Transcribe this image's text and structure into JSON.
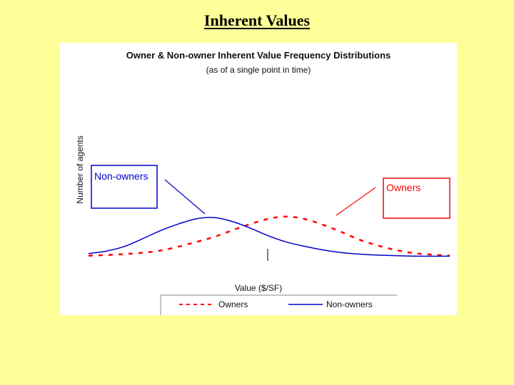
{
  "slide": {
    "title": "Inherent Values"
  },
  "chart_data": {
    "type": "line",
    "title": "Owner & Non-owner Inherent Value Frequency Distributions",
    "subtitle": "(as of a single point in time)",
    "xlabel": "Value ($/SF)",
    "ylabel": "Number of agents",
    "xlim": [
      0,
      100
    ],
    "ylim": [
      0,
      100
    ],
    "grid": false,
    "series": [
      {
        "name": "Owners",
        "color": "#ff0000",
        "style": "dashed",
        "x": [
          0,
          10,
          20,
          30,
          35,
          40,
          45,
          50,
          55,
          60,
          65,
          70,
          75,
          80,
          85,
          90,
          95,
          100
        ],
        "y": [
          2,
          5,
          12,
          29,
          39,
          52,
          64,
          74,
          78,
          73,
          62,
          48,
          33,
          22,
          13,
          7,
          4,
          2
        ]
      },
      {
        "name": "Non-owners",
        "color": "#0000cc",
        "style": "solid",
        "x": [
          0,
          5,
          10,
          15,
          20,
          25,
          30,
          35,
          40,
          45,
          50,
          55,
          60,
          65,
          70,
          75,
          80,
          90,
          100
        ],
        "y": [
          6,
          11,
          20,
          35,
          51,
          64,
          74,
          76,
          68,
          55,
          40,
          28,
          20,
          13,
          8,
          5,
          3,
          1,
          1
        ]
      }
    ],
    "annotations": [
      {
        "text": "Non-owners",
        "series": "Non-owners"
      },
      {
        "text": "Owners",
        "series": "Owners"
      }
    ],
    "legend": {
      "position": "bottom",
      "items": [
        "Owners",
        "Non-owners"
      ]
    }
  }
}
